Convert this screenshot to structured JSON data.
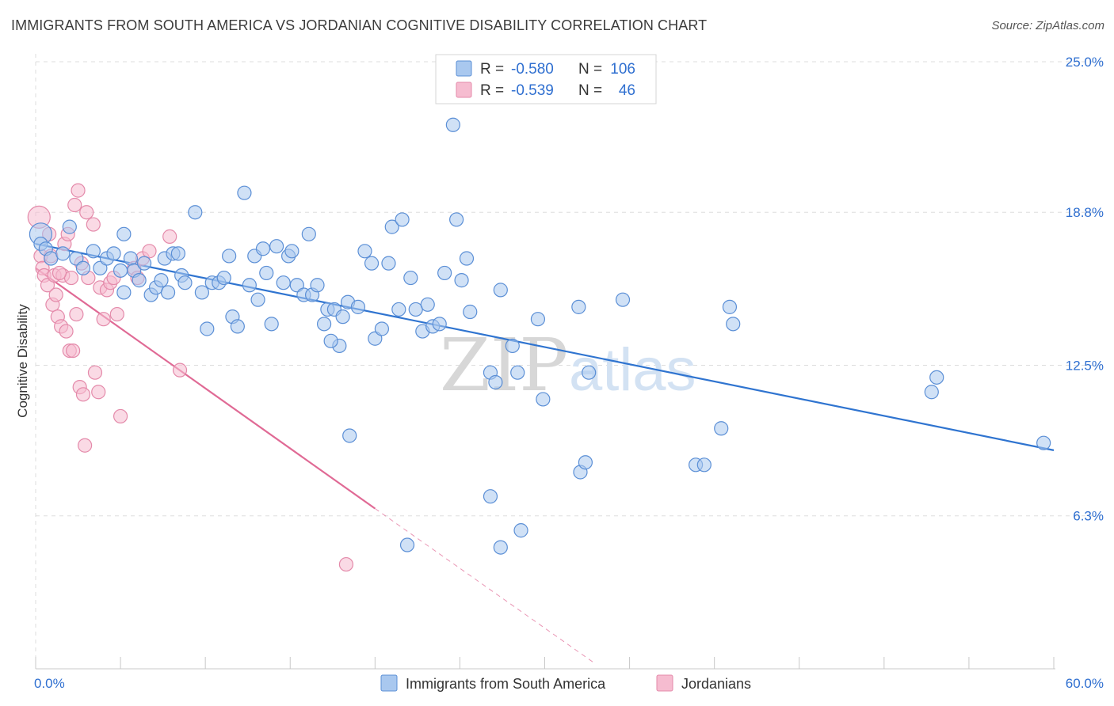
{
  "title": "IMMIGRANTS FROM SOUTH AMERICA VS JORDANIAN COGNITIVE DISABILITY CORRELATION CHART",
  "source": "Source: ZipAtlas.com",
  "watermark": {
    "zip": "ZIP",
    "atlas": "atlas"
  },
  "colors": {
    "blue_fill": "#a9c8ef",
    "blue_stroke": "#5b8fd6",
    "blue_line": "#2f74d0",
    "pink_fill": "#f6bcd0",
    "pink_stroke": "#e48aaa",
    "pink_line": "#e06a95",
    "value_text": "#2f6fd0",
    "grid": "#dddddd"
  },
  "legend": {
    "rows": [
      {
        "r_label": "R =",
        "r_value": "-0.580",
        "n_label": "N =",
        "n_value": "106"
      },
      {
        "r_label": "R =",
        "r_value": "-0.539",
        "n_label": "N =",
        "n_value": "46"
      }
    ]
  },
  "chart_data": {
    "type": "scatter",
    "xlabel": "",
    "ylabel": "Cognitive Disability",
    "xlim": [
      0,
      60
    ],
    "ylim": [
      0,
      25
    ],
    "x_tick_labels": [
      "0.0%",
      "60.0%"
    ],
    "y_ticks": [
      6.3,
      12.5,
      18.8,
      25.0
    ],
    "y_tick_labels": [
      "6.3%",
      "12.5%",
      "18.8%",
      "25.0%"
    ],
    "grid": true,
    "legend_position": "top-center",
    "series": [
      {
        "name": "Immigrants from South America",
        "color": "#a9c8ef",
        "trend": {
          "x": [
            0,
            60
          ],
          "y": [
            17.5,
            9.0
          ]
        },
        "points": [
          [
            0.3,
            17.9
          ],
          [
            0.3,
            17.5
          ],
          [
            0.6,
            17.3
          ],
          [
            0.9,
            16.9
          ],
          [
            1.6,
            17.1
          ],
          [
            2.0,
            18.2
          ],
          [
            2.4,
            16.9
          ],
          [
            2.8,
            16.5
          ],
          [
            3.4,
            17.2
          ],
          [
            3.8,
            16.5
          ],
          [
            4.2,
            16.9
          ],
          [
            4.6,
            17.1
          ],
          [
            5.0,
            16.4
          ],
          [
            5.2,
            15.5
          ],
          [
            5.2,
            17.9
          ],
          [
            5.6,
            16.9
          ],
          [
            5.8,
            16.4
          ],
          [
            6.1,
            16.0
          ],
          [
            6.4,
            16.7
          ],
          [
            6.8,
            15.4
          ],
          [
            7.1,
            15.7
          ],
          [
            7.4,
            16.0
          ],
          [
            7.6,
            16.9
          ],
          [
            7.8,
            15.5
          ],
          [
            8.1,
            17.1
          ],
          [
            8.4,
            17.1
          ],
          [
            8.6,
            16.2
          ],
          [
            8.8,
            15.9
          ],
          [
            9.4,
            18.8
          ],
          [
            9.8,
            15.5
          ],
          [
            10.1,
            14.0
          ],
          [
            10.4,
            15.9
          ],
          [
            10.8,
            15.9
          ],
          [
            11.1,
            16.1
          ],
          [
            11.4,
            17.0
          ],
          [
            11.6,
            14.5
          ],
          [
            11.9,
            14.1
          ],
          [
            12.3,
            19.6
          ],
          [
            12.6,
            15.8
          ],
          [
            12.9,
            17.0
          ],
          [
            13.1,
            15.2
          ],
          [
            13.4,
            17.3
          ],
          [
            13.6,
            16.3
          ],
          [
            13.9,
            14.2
          ],
          [
            14.2,
            17.4
          ],
          [
            14.6,
            15.9
          ],
          [
            14.9,
            17.0
          ],
          [
            15.1,
            17.2
          ],
          [
            15.4,
            15.8
          ],
          [
            15.8,
            15.4
          ],
          [
            16.1,
            17.9
          ],
          [
            16.3,
            15.4
          ],
          [
            16.6,
            15.8
          ],
          [
            17.0,
            14.2
          ],
          [
            17.2,
            14.8
          ],
          [
            17.6,
            14.8
          ],
          [
            17.9,
            13.3
          ],
          [
            18.1,
            14.5
          ],
          [
            18.4,
            15.1
          ],
          [
            19.0,
            14.9
          ],
          [
            19.4,
            17.2
          ],
          [
            19.8,
            16.7
          ],
          [
            20.0,
            13.6
          ],
          [
            20.4,
            14.0
          ],
          [
            20.8,
            16.7
          ],
          [
            21.0,
            18.2
          ],
          [
            21.4,
            14.8
          ],
          [
            21.6,
            18.5
          ],
          [
            22.1,
            16.1
          ],
          [
            22.4,
            14.8
          ],
          [
            22.8,
            13.9
          ],
          [
            23.1,
            15.0
          ],
          [
            23.4,
            14.1
          ],
          [
            23.8,
            14.2
          ],
          [
            24.1,
            16.3
          ],
          [
            24.6,
            22.4
          ],
          [
            24.8,
            18.5
          ],
          [
            25.1,
            16.0
          ],
          [
            25.4,
            16.9
          ],
          [
            25.6,
            14.7
          ],
          [
            26.8,
            12.2
          ],
          [
            27.1,
            11.8
          ],
          [
            27.4,
            15.6
          ],
          [
            28.1,
            13.3
          ],
          [
            28.4,
            12.2
          ],
          [
            29.6,
            14.4
          ],
          [
            29.9,
            11.1
          ],
          [
            32.0,
            14.9
          ],
          [
            32.6,
            12.2
          ],
          [
            34.6,
            15.2
          ],
          [
            40.4,
            9.9
          ],
          [
            40.9,
            14.9
          ],
          [
            41.1,
            14.2
          ],
          [
            52.8,
            11.4
          ],
          [
            53.1,
            12.0
          ],
          [
            59.4,
            9.3
          ],
          [
            18.5,
            9.6
          ],
          [
            21.9,
            5.1
          ],
          [
            26.8,
            7.1
          ],
          [
            27.4,
            5.0
          ],
          [
            28.6,
            5.7
          ],
          [
            32.1,
            8.1
          ],
          [
            32.4,
            8.5
          ],
          [
            38.9,
            8.4
          ],
          [
            39.4,
            8.4
          ],
          [
            17.4,
            13.5
          ]
        ]
      },
      {
        "name": "Jordanians",
        "color": "#f6bcd0",
        "trend": {
          "x": [
            0,
            20
          ],
          "y": [
            16.5,
            6.6
          ]
        },
        "trend_extension": {
          "x": [
            20,
            33
          ],
          "y": [
            6.6,
            0.2
          ]
        },
        "points": [
          [
            0.2,
            18.6
          ],
          [
            0.3,
            17.0
          ],
          [
            0.4,
            16.5
          ],
          [
            0.5,
            16.2
          ],
          [
            0.7,
            15.8
          ],
          [
            0.9,
            17.0
          ],
          [
            1.0,
            15.0
          ],
          [
            1.1,
            16.2
          ],
          [
            1.2,
            15.4
          ],
          [
            1.3,
            14.5
          ],
          [
            1.5,
            14.1
          ],
          [
            1.6,
            16.2
          ],
          [
            1.7,
            17.5
          ],
          [
            1.8,
            13.9
          ],
          [
            1.9,
            17.9
          ],
          [
            2.0,
            13.1
          ],
          [
            2.1,
            16.1
          ],
          [
            2.2,
            13.1
          ],
          [
            2.3,
            19.1
          ],
          [
            2.4,
            14.6
          ],
          [
            2.5,
            19.7
          ],
          [
            2.6,
            11.6
          ],
          [
            2.7,
            16.7
          ],
          [
            2.8,
            11.3
          ],
          [
            2.9,
            9.2
          ],
          [
            3.0,
            18.8
          ],
          [
            3.1,
            16.1
          ],
          [
            3.4,
            18.3
          ],
          [
            3.5,
            12.2
          ],
          [
            3.7,
            11.4
          ],
          [
            3.8,
            15.7
          ],
          [
            4.0,
            14.4
          ],
          [
            4.2,
            15.6
          ],
          [
            4.4,
            15.9
          ],
          [
            4.6,
            16.1
          ],
          [
            4.8,
            14.6
          ],
          [
            5.0,
            10.4
          ],
          [
            5.8,
            16.5
          ],
          [
            6.0,
            16.1
          ],
          [
            6.3,
            16.9
          ],
          [
            6.7,
            17.2
          ],
          [
            7.9,
            17.8
          ],
          [
            8.5,
            12.3
          ],
          [
            18.3,
            4.3
          ],
          [
            1.4,
            16.3
          ],
          [
            0.8,
            17.9
          ]
        ]
      }
    ]
  }
}
